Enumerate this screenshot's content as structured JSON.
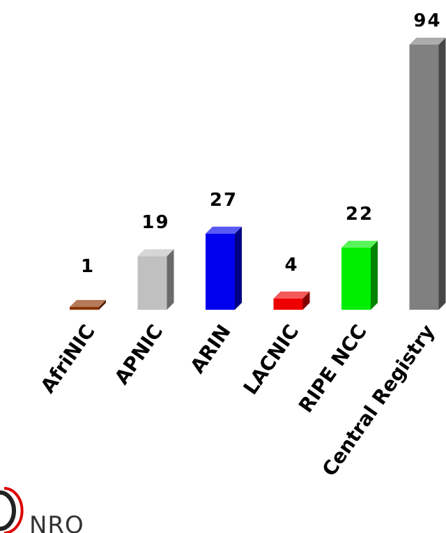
{
  "chart_data": {
    "type": "bar",
    "style": "3d",
    "categories": [
      "AfriNIC",
      "APNIC",
      "ARIN",
      "LACNIC",
      "RIPE NCC",
      "Central Registry"
    ],
    "values": [
      1,
      19,
      27,
      4,
      22,
      94
    ],
    "data_labels": [
      "1",
      "19",
      "27",
      "4",
      "22",
      "94"
    ],
    "colors": [
      "#8b3300",
      "#c0c0c0",
      "#0000ee",
      "#ee0000",
      "#00ee00",
      "#808080"
    ],
    "ylim": [
      0,
      94
    ],
    "grid": false,
    "legend": "none"
  },
  "logo": {
    "text": "NRO",
    "colors": [
      "#222222",
      "#dd0000"
    ]
  }
}
